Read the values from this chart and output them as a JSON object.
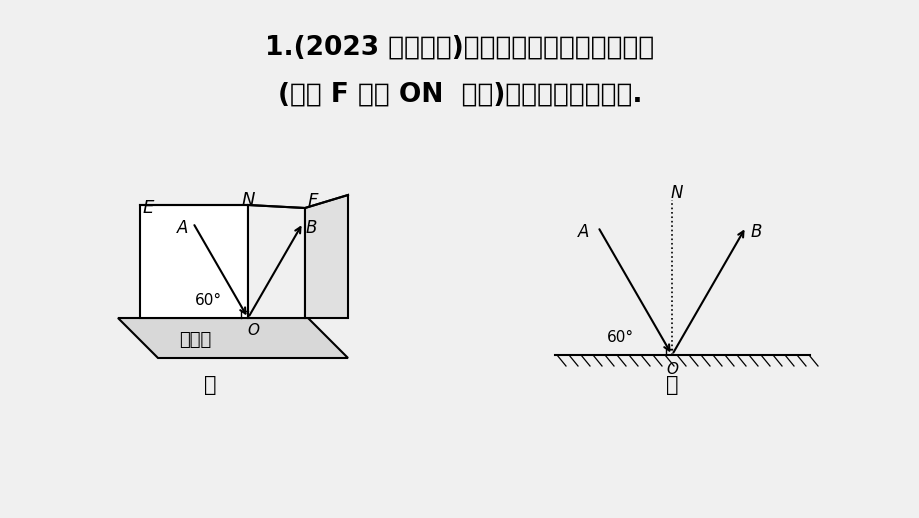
{
  "bg_color": "#f0f0f0",
  "title_line1": "1.(2023 眉山中考)同学们利用图甲所示的器材",
  "title_line2": "(纸板 F 可绕 ON  翻折)探究光的反射定律.",
  "title_fontsize": 19,
  "label_jia": "甲",
  "label_yi": "乙",
  "label_pingmianjing": "平面镜"
}
